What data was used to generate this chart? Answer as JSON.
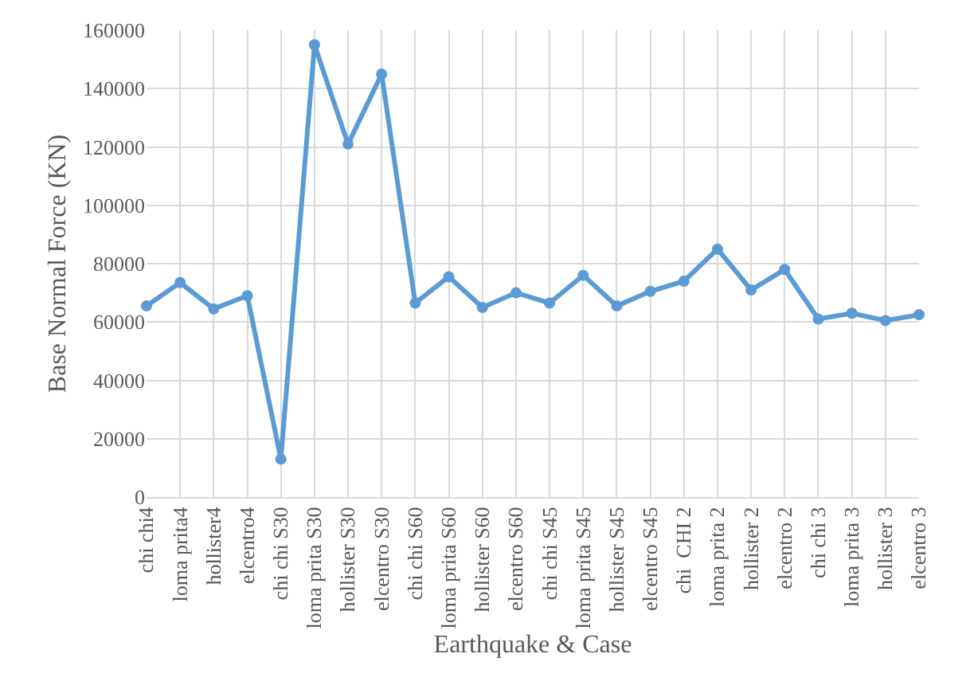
{
  "chart_data": {
    "type": "line",
    "xlabel": "Earthquake & Case",
    "ylabel": "Base Normal Force (KN)",
    "categories": [
      "chi chi4",
      "loma prita4",
      "hollister4",
      "elcentro4",
      "chi chi S30",
      "loma prita S30",
      "hollister S30",
      "elcentro S30",
      "chi chi S60",
      "loma prita S60",
      "hollister S60",
      "elcentro S60",
      "chi chi S45",
      "loma prita S45",
      "hollister S45",
      "elcentro S45",
      "chi  CHI 2",
      "loma prita 2",
      "hollister 2",
      "elcentro 2",
      "chi chi 3",
      "loma prita 3",
      "hollister 3",
      "elcentro 3"
    ],
    "series": [
      {
        "color": "#5b9bd5",
        "values": [
          65500,
          73500,
          64500,
          69000,
          13000,
          155000,
          121000,
          145000,
          66500,
          75500,
          65000,
          70000,
          66500,
          76000,
          65500,
          70500,
          74000,
          85000,
          71000,
          78000,
          61000,
          63000,
          60500,
          62500
        ]
      }
    ],
    "ylim": [
      0,
      160000
    ],
    "yticks": [
      0,
      20000,
      40000,
      60000,
      80000,
      100000,
      120000,
      140000,
      160000
    ],
    "grid": true,
    "marker": "circle",
    "line_style": "solid"
  }
}
